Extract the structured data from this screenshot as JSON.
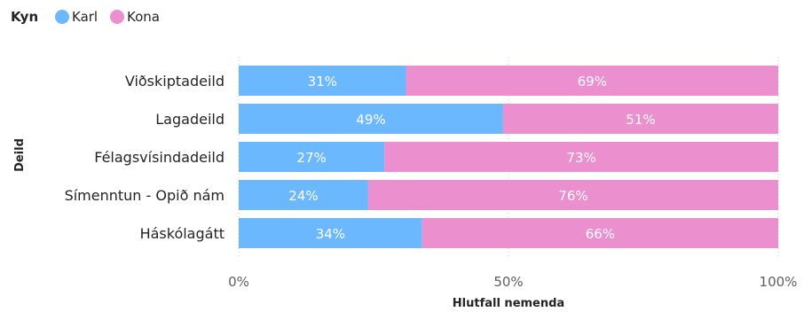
{
  "legend": {
    "title": "Kyn",
    "items": [
      {
        "label": "Karl",
        "color": "#6cb8ff"
      },
      {
        "label": "Kona",
        "color": "#ec8fcf"
      }
    ]
  },
  "chart_data": {
    "type": "bar",
    "orientation": "horizontal",
    "stacked": "100%",
    "categories": [
      "Viðskiptadeild",
      "Lagadeild",
      "Félagsvísindadeild",
      "Símenntun - Opið nám",
      "Háskólagátt"
    ],
    "series": [
      {
        "name": "Karl",
        "color": "#6cb8ff",
        "values": [
          31,
          49,
          27,
          24,
          34
        ]
      },
      {
        "name": "Kona",
        "color": "#ec8fcf",
        "values": [
          69,
          51,
          73,
          76,
          66
        ]
      }
    ],
    "xlabel": "Hlutfall nemenda",
    "ylabel": "Deild",
    "xlim": [
      0,
      100
    ],
    "xticks": [
      "0%",
      "50%",
      "100%"
    ],
    "value_suffix": "%",
    "grid": "vertical dotted",
    "legend_position": "top-left"
  }
}
